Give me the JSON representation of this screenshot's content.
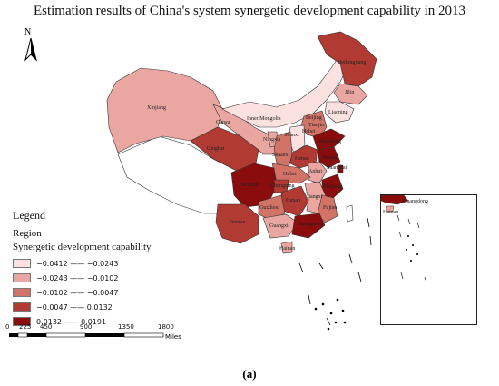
{
  "title": "Estimation results of China's system synergetic development capability in 2013",
  "north_letter": "N",
  "legend": {
    "title": "Legend",
    "region_label": "Region",
    "field_label": "Synergetic development capability",
    "classes": [
      {
        "label": "−0.0412 —— −0.0243",
        "color": "#fbe1df"
      },
      {
        "label": "−0.0243 —— −0.0102",
        "color": "#eaa7a2"
      },
      {
        "label": "−0.0102 —— −0.0047",
        "color": "#d27368"
      },
      {
        "label": "−0.0047 —— 0.0132",
        "color": "#b13a33"
      },
      {
        "label": "0.0132 —— 0.0191",
        "color": "#8a0c0c"
      }
    ]
  },
  "scale": {
    "ticks": [
      "0",
      "225",
      "450",
      "900",
      "1350",
      "1800"
    ],
    "unit": "Miles"
  },
  "provinces": {
    "heilongjiang": "Heilongjiang",
    "jilin": "Jilin",
    "liaoning": "Liaoning",
    "inner_mongolia": "Inner Mongolia",
    "xinjiang": "Xinjiang",
    "gansu": "Gansu",
    "qinghai": "Qinghai",
    "ningxia": "Ningxia",
    "shaanxi": "Shaanxi",
    "shanxi": "Shanxi",
    "hebei": "Hebei",
    "beijing": "Beijing",
    "tianjin": "Tianjin",
    "shandong": "Shandong",
    "henan": "Henan",
    "jiangsu": "Jiangsu",
    "anhui": "Anhui",
    "shanghai": "Shanghai",
    "hubei": "Hubei",
    "sichuan": "Sichuan",
    "chongqing": "Chongqing",
    "zhejiang": "Zhejiang",
    "hunan": "Hunan",
    "jiangxi": "Jiangxi",
    "guizhou": "Guizhou",
    "fujian": "Fujian",
    "yunnan": "Yunnan",
    "guangxi": "Guangxi",
    "guangdong": "Guangdong",
    "hainan": "Hainan"
  },
  "inset": {
    "guangdong": "Guangdong",
    "hainan": "Hainan"
  },
  "caption": "(a)"
}
